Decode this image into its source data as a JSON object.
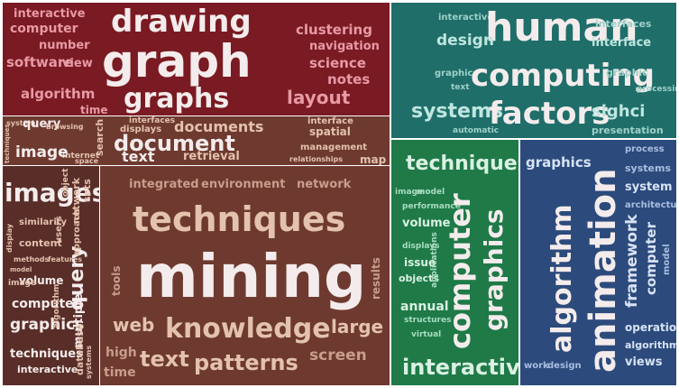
{
  "colors": {
    "red_panel": "#7a1a22",
    "teal_panel": "#1f6e6a",
    "brown_panel": "#6e3a30",
    "brown_dark_panel": "#5a2e28",
    "green_panel": "#1f7a48",
    "blue_panel": "#2c4b7c",
    "word_light": "#f4ecec",
    "word_pink": "#e79aa5",
    "word_tan": "#e3c2ae",
    "word_teal_light": "#bfe6df",
    "word_green_light": "#d9f1e3",
    "word_blue_light": "#d8e2f5"
  },
  "red_cluster": {
    "words": [
      "interactive",
      "computer",
      "number",
      "software",
      "view",
      "algorithm",
      "time",
      "drawing",
      "graph",
      "graphs",
      "clustering",
      "navigation",
      "science",
      "notes",
      "layout"
    ]
  },
  "teal_cluster": {
    "words": [
      "interactive",
      "human",
      "interfaces",
      "design",
      "interface",
      "graphics",
      "text",
      "computing",
      "graphic",
      "processing",
      "systems",
      "factors",
      "sighci",
      "automatic",
      "presentation"
    ]
  },
  "document_cluster": {
    "words": [
      "system",
      "query",
      "browsing",
      "interfaces",
      "interface",
      "documents",
      "displays",
      "spatial",
      "search",
      "document",
      "management",
      "internet",
      "space",
      "text",
      "retrieval",
      "relationships",
      "map",
      "image",
      "techniques"
    ]
  },
  "images_cluster": {
    "words": [
      "images",
      "similarity",
      "content",
      "volume",
      "computer",
      "graphics",
      "techniques",
      "interactive",
      "image",
      "users",
      "model",
      "display",
      "methods",
      "features",
      "query",
      "network",
      "approach",
      "algorithm",
      "multiple",
      "database",
      "object",
      "sets",
      "systems"
    ]
  },
  "mining_cluster": {
    "words": [
      "integrated",
      "environment",
      "network",
      "techniques",
      "mining",
      "tools",
      "results",
      "web",
      "knowledge",
      "large",
      "high",
      "text",
      "patterns",
      "screen",
      "time"
    ]
  },
  "green_cluster": {
    "words": [
      "techniques",
      "image",
      "model",
      "performance",
      "volume",
      "displays",
      "issue",
      "objects",
      "annual",
      "structures",
      "virtual",
      "applications",
      "computer",
      "graphics",
      "interactive"
    ]
  },
  "blue_cluster": {
    "words": [
      "graphics",
      "process",
      "systems",
      "system",
      "architecture",
      "algorithm",
      "animation",
      "framework",
      "computer",
      "model",
      "operations",
      "algorithms",
      "views",
      "work",
      "design"
    ]
  }
}
